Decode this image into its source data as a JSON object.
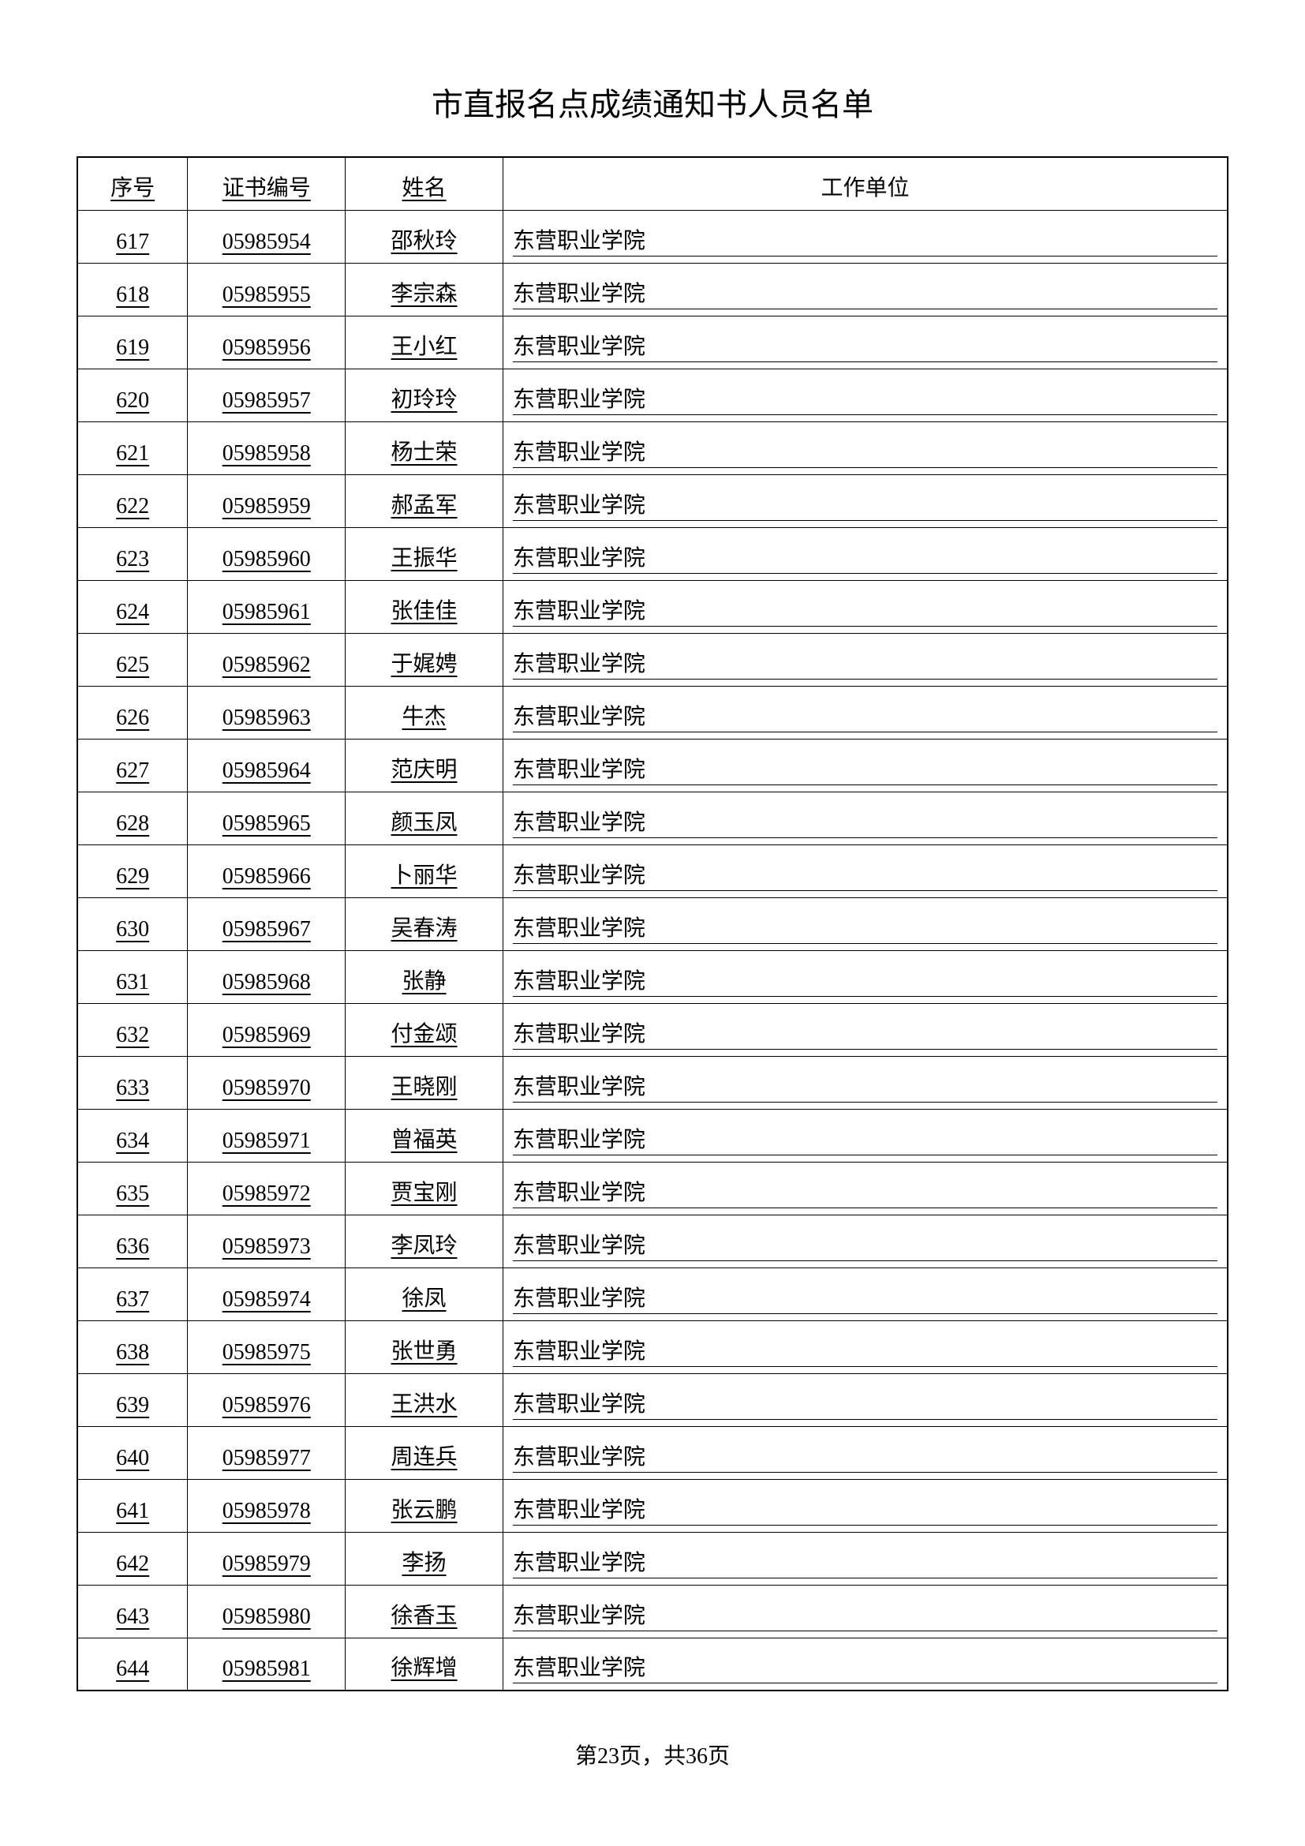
{
  "title": "市直报名点成绩通知书人员名单",
  "table": {
    "headers": {
      "seq": "序号",
      "cert": "证书编号",
      "name": "姓名",
      "org": "工作单位"
    },
    "rows": [
      {
        "seq": "617",
        "cert": "05985954",
        "name": "邵秋玲",
        "org": "东营职业学院"
      },
      {
        "seq": "618",
        "cert": "05985955",
        "name": "李宗森",
        "org": "东营职业学院"
      },
      {
        "seq": "619",
        "cert": "05985956",
        "name": "王小红",
        "org": "东营职业学院"
      },
      {
        "seq": "620",
        "cert": "05985957",
        "name": "初玲玲",
        "org": "东营职业学院"
      },
      {
        "seq": "621",
        "cert": "05985958",
        "name": "杨士荣",
        "org": "东营职业学院"
      },
      {
        "seq": "622",
        "cert": "05985959",
        "name": "郝孟军",
        "org": "东营职业学院"
      },
      {
        "seq": "623",
        "cert": "05985960",
        "name": "王振华",
        "org": "东营职业学院"
      },
      {
        "seq": "624",
        "cert": "05985961",
        "name": "张佳佳",
        "org": "东营职业学院"
      },
      {
        "seq": "625",
        "cert": "05985962",
        "name": "于娓娉",
        "org": "东营职业学院"
      },
      {
        "seq": "626",
        "cert": "05985963",
        "name": "牛杰",
        "org": "东营职业学院"
      },
      {
        "seq": "627",
        "cert": "05985964",
        "name": "范庆明",
        "org": "东营职业学院"
      },
      {
        "seq": "628",
        "cert": "05985965",
        "name": "颜玉凤",
        "org": "东营职业学院"
      },
      {
        "seq": "629",
        "cert": "05985966",
        "name": "卜丽华",
        "org": "东营职业学院"
      },
      {
        "seq": "630",
        "cert": "05985967",
        "name": "吴春涛",
        "org": "东营职业学院"
      },
      {
        "seq": "631",
        "cert": "05985968",
        "name": "张静",
        "org": "东营职业学院"
      },
      {
        "seq": "632",
        "cert": "05985969",
        "name": "付金颂",
        "org": "东营职业学院"
      },
      {
        "seq": "633",
        "cert": "05985970",
        "name": "王晓刚",
        "org": "东营职业学院"
      },
      {
        "seq": "634",
        "cert": "05985971",
        "name": "曾福英",
        "org": "东营职业学院"
      },
      {
        "seq": "635",
        "cert": "05985972",
        "name": "贾宝刚",
        "org": "东营职业学院"
      },
      {
        "seq": "636",
        "cert": "05985973",
        "name": "李凤玲",
        "org": "东营职业学院"
      },
      {
        "seq": "637",
        "cert": "05985974",
        "name": "徐凤",
        "org": "东营职业学院"
      },
      {
        "seq": "638",
        "cert": "05985975",
        "name": "张世勇",
        "org": "东营职业学院"
      },
      {
        "seq": "639",
        "cert": "05985976",
        "name": "王洪水",
        "org": "东营职业学院"
      },
      {
        "seq": "640",
        "cert": "05985977",
        "name": "周连兵",
        "org": "东营职业学院"
      },
      {
        "seq": "641",
        "cert": "05985978",
        "name": "张云鹏",
        "org": "东营职业学院"
      },
      {
        "seq": "642",
        "cert": "05985979",
        "name": "李扬",
        "org": "东营职业学院"
      },
      {
        "seq": "643",
        "cert": "05985980",
        "name": "徐香玉",
        "org": "东营职业学院"
      },
      {
        "seq": "644",
        "cert": "05985981",
        "name": "徐辉增",
        "org": "东营职业学院"
      }
    ]
  },
  "footer": "第23页，共36页"
}
